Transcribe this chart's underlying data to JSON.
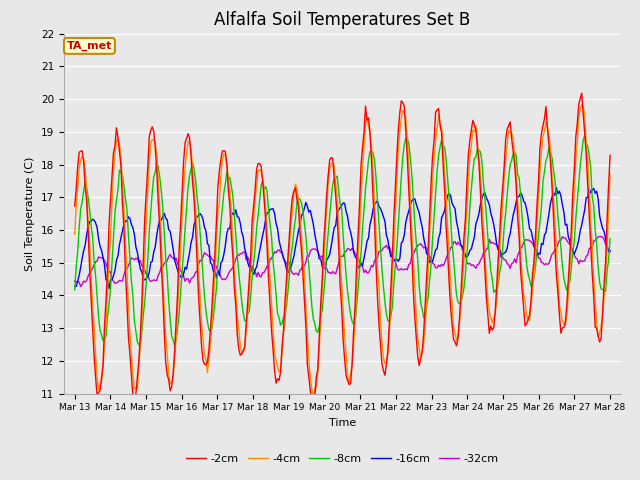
{
  "title": "Alfalfa Soil Temperatures Set B",
  "xlabel": "Time",
  "ylabel": "Soil Temperature (C)",
  "ylim": [
    11.0,
    22.0
  ],
  "yticks": [
    11.0,
    12.0,
    13.0,
    14.0,
    15.0,
    16.0,
    17.0,
    18.0,
    19.0,
    20.0,
    21.0,
    22.0
  ],
  "xtick_labels": [
    "Mar 13",
    "Mar 14",
    "Mar 15",
    "Mar 16",
    "Mar 17",
    "Mar 18",
    "Mar 19",
    "Mar 20",
    "Mar 21",
    "Mar 22",
    "Mar 23",
    "Mar 24",
    "Mar 25",
    "Mar 26",
    "Mar 27",
    "Mar 28"
  ],
  "colors": {
    "-2cm": "#ff0000",
    "-4cm": "#ff8c00",
    "-8cm": "#00cc00",
    "-16cm": "#0000ff",
    "-32cm": "#cc00cc"
  },
  "legend_labels": [
    "-2cm",
    "-4cm",
    "-8cm",
    "-16cm",
    "-32cm"
  ],
  "annotation": "TA_met",
  "annotation_color": "#cc0000",
  "annotation_bg": "#ffffcc",
  "annotation_border": "#cc8800",
  "plot_bg": "#e8e8e8",
  "grid_color": "#ffffff",
  "title_fontsize": 12
}
